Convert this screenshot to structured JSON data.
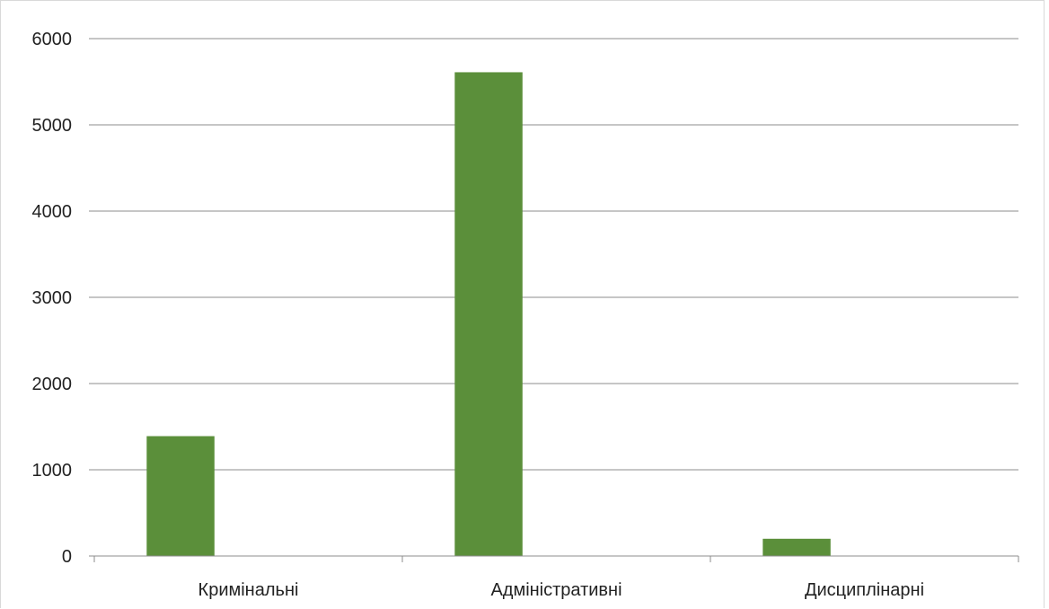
{
  "chart_data": {
    "type": "bar",
    "title": "",
    "xlabel": "",
    "ylabel": "",
    "categories": [
      "Кримінальні",
      "Адміністративні",
      "Дисциплінарні"
    ],
    "series": [
      {
        "values": [
          1390,
          5610,
          200
        ],
        "color": "#5b8f3a"
      }
    ],
    "ylim": [
      0,
      6000
    ],
    "yticks": [
      0,
      1000,
      2000,
      3000,
      4000,
      5000,
      6000
    ],
    "grid": true,
    "legend": "none"
  }
}
